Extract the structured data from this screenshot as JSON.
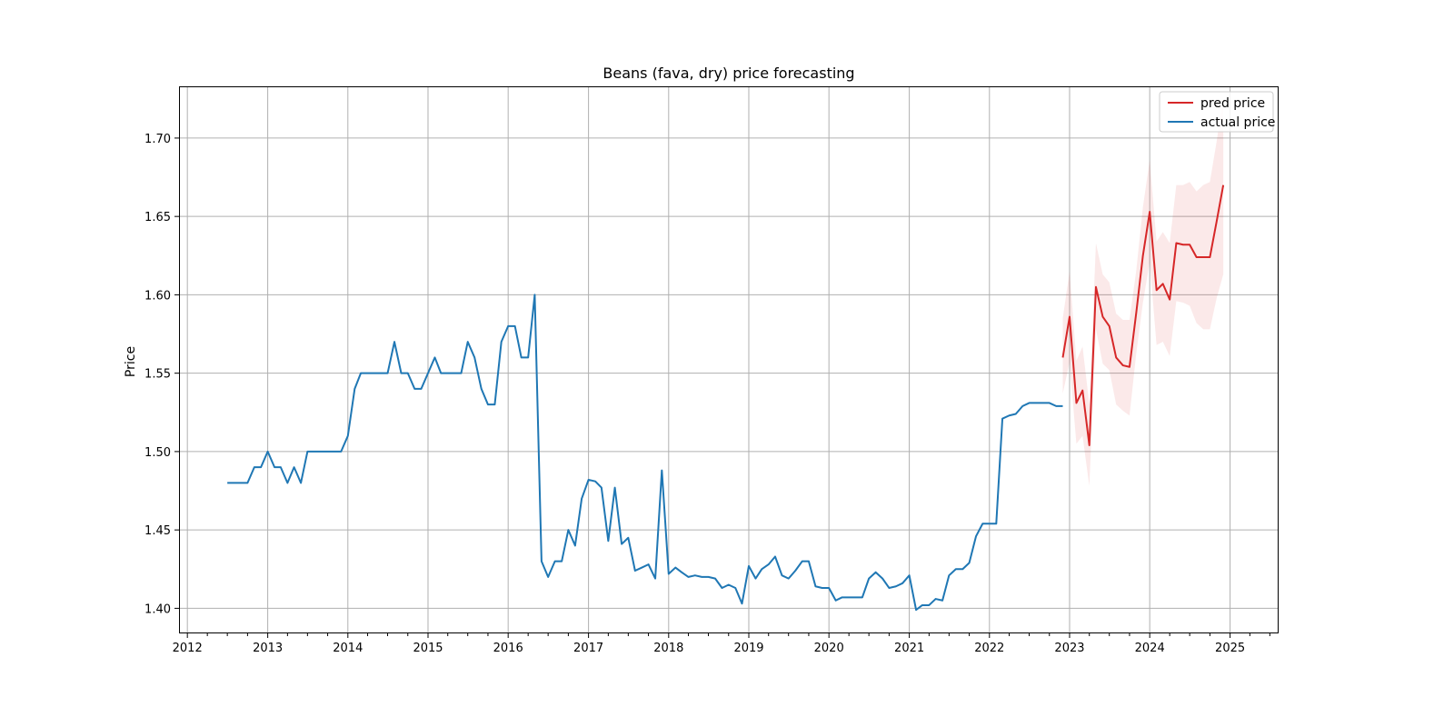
{
  "chart_data": {
    "type": "line",
    "title": "Beans (fava, dry) price forecasting",
    "xlabel": "",
    "ylabel": "Price",
    "xlim": [
      "2011-11-24",
      "2025-08-10"
    ],
    "ylim": [
      1.384,
      1.733
    ],
    "x_ticks": [
      "2012",
      "2013",
      "2014",
      "2015",
      "2016",
      "2017",
      "2018",
      "2019",
      "2020",
      "2021",
      "2022",
      "2023",
      "2024",
      "2025"
    ],
    "y_ticks": [
      1.4,
      1.45,
      1.5,
      1.55,
      1.6,
      1.65,
      1.7
    ],
    "y_tick_labels": [
      "1.40",
      "1.45",
      "1.50",
      "1.55",
      "1.60",
      "1.65",
      "1.70"
    ],
    "grid": true,
    "legend_position": "top-right",
    "series": [
      {
        "name": "pred price",
        "color": "#d62728",
        "x": [
          "2022-12-01",
          "2023-01-01",
          "2023-02-01",
          "2023-03-01",
          "2023-04-01",
          "2023-05-01",
          "2023-06-01",
          "2023-07-01",
          "2023-08-01",
          "2023-09-01",
          "2023-10-01",
          "2023-11-01",
          "2023-12-01",
          "2024-01-01",
          "2024-02-01",
          "2024-03-01",
          "2024-04-01",
          "2024-05-01",
          "2024-06-01",
          "2024-07-01",
          "2024-08-01",
          "2024-09-01",
          "2024-10-01",
          "2024-11-01",
          "2024-12-01"
        ],
        "values": [
          1.56,
          1.586,
          1.531,
          1.539,
          1.504,
          1.605,
          1.586,
          1.58,
          1.56,
          1.555,
          1.554,
          1.589,
          1.625,
          1.653,
          1.603,
          1.607,
          1.597,
          1.633,
          1.632,
          1.632,
          1.624,
          1.624,
          1.624,
          1.647,
          1.67
        ],
        "lower": [
          1.537,
          1.557,
          1.505,
          1.51,
          1.478,
          1.578,
          1.556,
          1.552,
          1.53,
          1.526,
          1.523,
          1.563,
          1.595,
          1.621,
          1.568,
          1.57,
          1.561,
          1.596,
          1.595,
          1.593,
          1.582,
          1.578,
          1.578,
          1.598,
          1.613
        ],
        "upper": [
          1.585,
          1.615,
          1.558,
          1.567,
          1.53,
          1.633,
          1.613,
          1.608,
          1.588,
          1.584,
          1.584,
          1.616,
          1.656,
          1.686,
          1.634,
          1.64,
          1.633,
          1.67,
          1.67,
          1.672,
          1.666,
          1.67,
          1.672,
          1.698,
          1.727
        ]
      },
      {
        "name": "actual price",
        "color": "#1f77b4",
        "x": [
          "2012-07-01",
          "2012-08-01",
          "2012-09-01",
          "2012-10-01",
          "2012-11-01",
          "2012-12-01",
          "2013-01-01",
          "2013-02-01",
          "2013-03-01",
          "2013-04-01",
          "2013-05-01",
          "2013-06-01",
          "2013-07-01",
          "2013-08-01",
          "2013-09-01",
          "2013-10-01",
          "2013-11-01",
          "2013-12-01",
          "2014-01-01",
          "2014-02-01",
          "2014-03-01",
          "2014-04-01",
          "2014-05-01",
          "2014-06-01",
          "2014-07-01",
          "2014-08-01",
          "2014-09-01",
          "2014-10-01",
          "2014-11-01",
          "2014-12-01",
          "2015-01-01",
          "2015-02-01",
          "2015-03-01",
          "2015-04-01",
          "2015-05-01",
          "2015-06-01",
          "2015-07-01",
          "2015-08-01",
          "2015-09-01",
          "2015-10-01",
          "2015-11-01",
          "2015-12-01",
          "2016-01-01",
          "2016-02-01",
          "2016-03-01",
          "2016-04-01",
          "2016-05-01",
          "2016-06-01",
          "2016-07-01",
          "2016-08-01",
          "2016-09-01",
          "2016-10-01",
          "2016-11-01",
          "2016-12-01",
          "2017-01-01",
          "2017-02-01",
          "2017-03-01",
          "2017-04-01",
          "2017-05-01",
          "2017-06-01",
          "2017-07-01",
          "2017-08-01",
          "2017-09-01",
          "2017-10-01",
          "2017-11-01",
          "2017-12-01",
          "2018-01-01",
          "2018-02-01",
          "2018-03-01",
          "2018-04-01",
          "2018-05-01",
          "2018-06-01",
          "2018-07-01",
          "2018-08-01",
          "2018-09-01",
          "2018-10-01",
          "2018-11-01",
          "2018-12-01",
          "2019-01-01",
          "2019-02-01",
          "2019-03-01",
          "2019-04-01",
          "2019-05-01",
          "2019-06-01",
          "2019-07-01",
          "2019-08-01",
          "2019-09-01",
          "2019-10-01",
          "2019-11-01",
          "2019-12-01",
          "2020-01-01",
          "2020-02-01",
          "2020-03-01",
          "2020-04-01",
          "2020-05-01",
          "2020-06-01",
          "2020-07-01",
          "2020-08-01",
          "2020-09-01",
          "2020-10-01",
          "2020-11-01",
          "2020-12-01",
          "2021-01-01",
          "2021-02-01",
          "2021-03-01",
          "2021-04-01",
          "2021-05-01",
          "2021-06-01",
          "2021-07-01",
          "2021-08-01",
          "2021-09-01",
          "2021-10-01",
          "2021-11-01",
          "2021-12-01",
          "2022-01-01",
          "2022-02-01",
          "2022-03-01",
          "2022-04-01",
          "2022-05-01",
          "2022-06-01",
          "2022-07-01",
          "2022-08-01",
          "2022-09-01",
          "2022-10-01",
          "2022-11-01",
          "2022-12-01"
        ],
        "values": [
          1.48,
          1.48,
          1.48,
          1.48,
          1.49,
          1.49,
          1.5,
          1.49,
          1.49,
          1.48,
          1.49,
          1.48,
          1.5,
          1.5,
          1.5,
          1.5,
          1.5,
          1.5,
          1.51,
          1.54,
          1.55,
          1.55,
          1.55,
          1.55,
          1.55,
          1.57,
          1.55,
          1.55,
          1.54,
          1.54,
          1.55,
          1.56,
          1.55,
          1.55,
          1.55,
          1.55,
          1.57,
          1.56,
          1.54,
          1.53,
          1.53,
          1.57,
          1.58,
          1.58,
          1.56,
          1.56,
          1.6,
          1.43,
          1.42,
          1.43,
          1.43,
          1.45,
          1.44,
          1.47,
          1.482,
          1.481,
          1.477,
          1.443,
          1.477,
          1.441,
          1.445,
          1.424,
          1.426,
          1.428,
          1.419,
          1.488,
          1.422,
          1.426,
          1.423,
          1.42,
          1.421,
          1.42,
          1.42,
          1.419,
          1.413,
          1.415,
          1.413,
          1.403,
          1.427,
          1.419,
          1.425,
          1.428,
          1.433,
          1.421,
          1.419,
          1.424,
          1.43,
          1.43,
          1.414,
          1.413,
          1.413,
          1.405,
          1.407,
          1.407,
          1.407,
          1.407,
          1.419,
          1.423,
          1.419,
          1.413,
          1.414,
          1.416,
          1.421,
          1.399,
          1.402,
          1.402,
          1.406,
          1.405,
          1.421,
          1.425,
          1.425,
          1.429,
          1.446,
          1.454,
          1.454,
          1.454,
          1.521,
          1.523,
          1.524,
          1.529,
          1.531,
          1.531,
          1.531,
          1.531,
          1.529,
          1.529
        ]
      }
    ]
  }
}
